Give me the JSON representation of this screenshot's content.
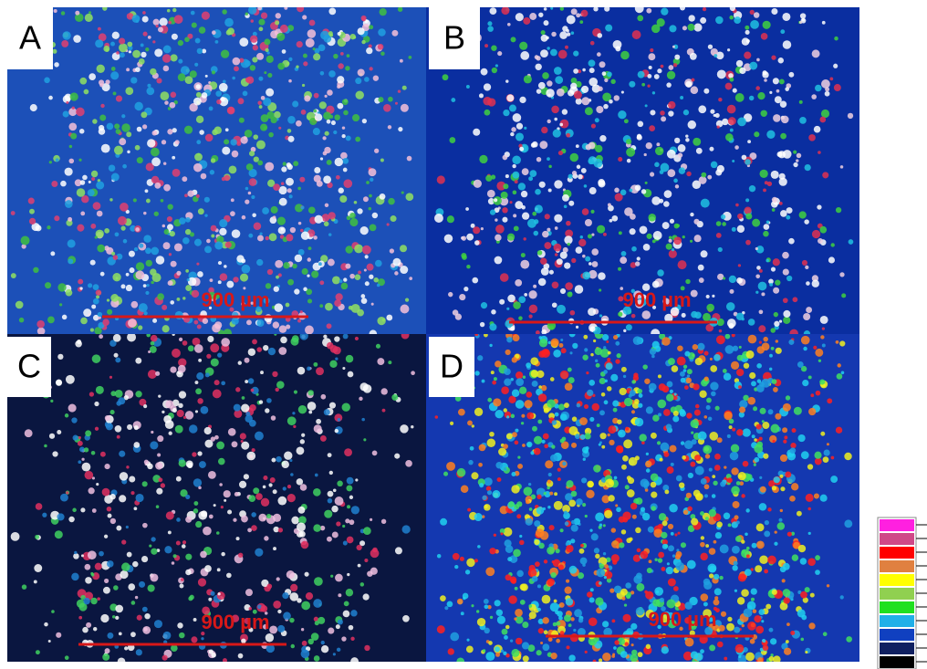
{
  "panels": [
    {
      "label": "A",
      "scale_bar": "900 µm"
    },
    {
      "label": "B",
      "scale_bar": "900 µm"
    },
    {
      "label": "C",
      "scale_bar": "900 µm"
    },
    {
      "label": "D",
      "scale_bar": "900 µm"
    }
  ]
}
